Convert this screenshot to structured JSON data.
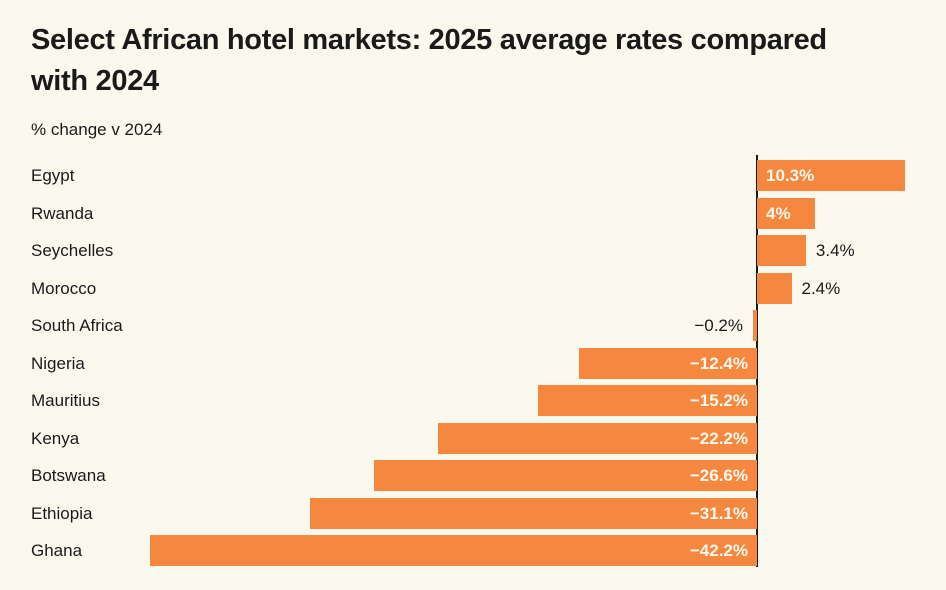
{
  "page": {
    "title": "Select African hotel markets: 2025 average rates compared with 2024",
    "subtitle": "% change v 2024"
  },
  "colors": {
    "background": "#FBF8EE",
    "bar": "#F6873E",
    "text": "#1A1A1A",
    "axis_line": "#1A1A1A",
    "value_label_inside": "#FBF8EE",
    "value_label_outside": "#1A1A1A"
  },
  "chart_data": {
    "type": "bar",
    "orientation": "horizontal",
    "title": "Select African hotel markets: 2025 average rates compared with 2024",
    "xlabel": "% change v 2024",
    "ylabel": "",
    "categories": [
      "Egypt",
      "Rwanda",
      "Seychelles",
      "Morocco",
      "South Africa",
      "Nigeria",
      "Mauritius",
      "Kenya",
      "Botswana",
      "Ethiopia",
      "Ghana"
    ],
    "values": [
      10.3,
      4,
      3.4,
      2.4,
      -0.2,
      -12.4,
      -15.2,
      -22.2,
      -26.6,
      -31.1,
      -42.2
    ],
    "value_labels": [
      "10.3%",
      "4%",
      "3.4%",
      "2.4%",
      "−0.2%",
      "−12.4%",
      "−15.2%",
      "−22.2%",
      "−26.6%",
      "−31.1%",
      "−42.2%"
    ],
    "baseline": 0,
    "xlim": [
      -42.2,
      10.3
    ],
    "grid": false,
    "legend": false,
    "sort_order": "descending"
  }
}
